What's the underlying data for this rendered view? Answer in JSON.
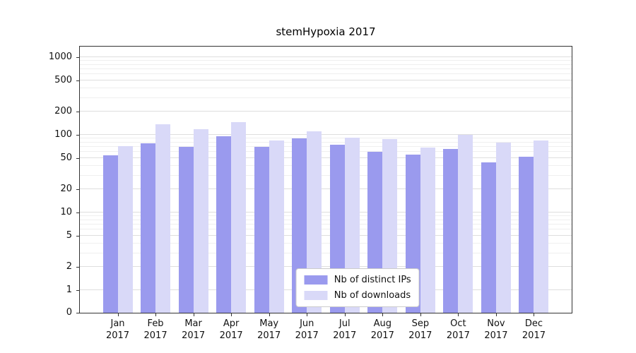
{
  "chart_data": {
    "type": "bar",
    "title": "stemHypoxia 2017",
    "y_scale": "symlog",
    "y_ticks": [
      0,
      1,
      2,
      5,
      10,
      20,
      50,
      100,
      200,
      500,
      1000
    ],
    "ylim": [
      0,
      1100
    ],
    "grid": true,
    "legend_position": "lower center",
    "x_categories": [
      {
        "month": "Jan",
        "year": "2017"
      },
      {
        "month": "Feb",
        "year": "2017"
      },
      {
        "month": "Mar",
        "year": "2017"
      },
      {
        "month": "Apr",
        "year": "2017"
      },
      {
        "month": "May",
        "year": "2017"
      },
      {
        "month": "Jun",
        "year": "2017"
      },
      {
        "month": "Jul",
        "year": "2017"
      },
      {
        "month": "Aug",
        "year": "2017"
      },
      {
        "month": "Sep",
        "year": "2017"
      },
      {
        "month": "Oct",
        "year": "2017"
      },
      {
        "month": "Nov",
        "year": "2017"
      },
      {
        "month": "Dec",
        "year": "2017"
      }
    ],
    "series": [
      {
        "name": "Nb of distinct IPs",
        "color": "#9a9aee",
        "values": [
          54,
          78,
          70,
          95,
          70,
          90,
          75,
          61,
          56,
          66,
          44,
          52
        ]
      },
      {
        "name": "Nb of downloads",
        "color": "#d9d9f8",
        "values": [
          72,
          138,
          118,
          145,
          85,
          110,
          92,
          88,
          68,
          100,
          80,
          85
        ]
      }
    ]
  }
}
